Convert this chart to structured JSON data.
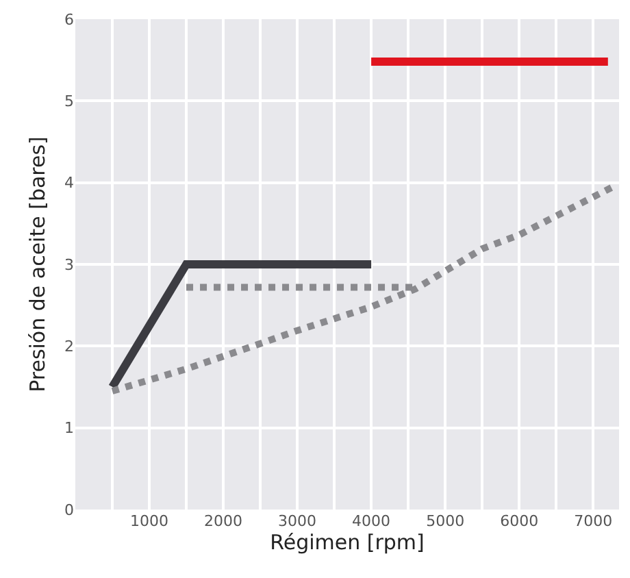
{
  "chart_data": {
    "type": "line",
    "xlabel": "Régimen [rpm]",
    "ylabel": "Presión de aceite [bares]",
    "xlim": [
      0,
      7350
    ],
    "xticks": [
      1000,
      2000,
      3000,
      4000,
      5000,
      6000,
      7000
    ],
    "ylim": [
      0,
      6
    ],
    "yticks": [
      0,
      1,
      2,
      3,
      4,
      5,
      6
    ],
    "grid": true,
    "series": [
      {
        "color": "#3c3c42",
        "line_style": "solid",
        "x": [
          500,
          1500,
          4000
        ],
        "values": [
          1.5,
          3,
          3
        ]
      },
      {
        "color": "#8a8a8e",
        "line_style": "dotted",
        "x": [
          1500,
          4600
        ],
        "values": [
          2.72,
          2.72
        ]
      },
      {
        "color": "#8a8a8e",
        "line_style": "dotted",
        "x": [
          500,
          1500,
          2500,
          3000,
          4000,
          4600,
          5500,
          6000,
          7250
        ],
        "values": [
          1.45,
          1.72,
          2.03,
          2.19,
          2.48,
          2.7,
          3.19,
          3.36,
          3.94
        ]
      },
      {
        "color": "#e0141e",
        "line_style": "solid",
        "x": [
          4000,
          7200
        ],
        "values": [
          5.48,
          5.48
        ]
      }
    ]
  }
}
